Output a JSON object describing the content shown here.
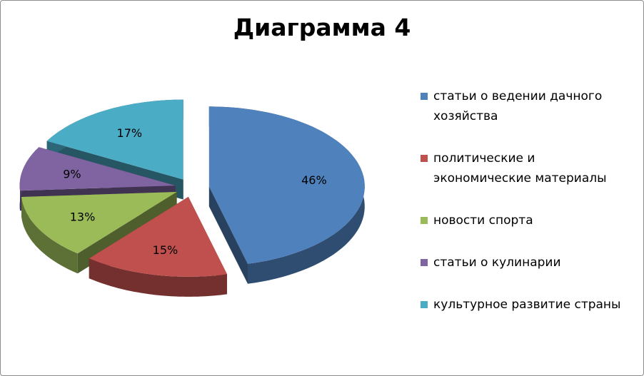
{
  "chart_data": {
    "type": "pie",
    "title": "Диаграмма 4",
    "categories": [
      "статьи о ведении дачного хозяйства",
      "политические и экономические материалы",
      "новости спорта",
      "статьи о кулинарии",
      "культурное развитие страны"
    ],
    "values": [
      46,
      15,
      13,
      9,
      17
    ],
    "value_labels": [
      "46%",
      "15%",
      "13%",
      "9%",
      "17%"
    ],
    "colors": [
      "#4f81bd",
      "#c0504d",
      "#9bbb59",
      "#8064a2",
      "#4bacc6"
    ]
  }
}
